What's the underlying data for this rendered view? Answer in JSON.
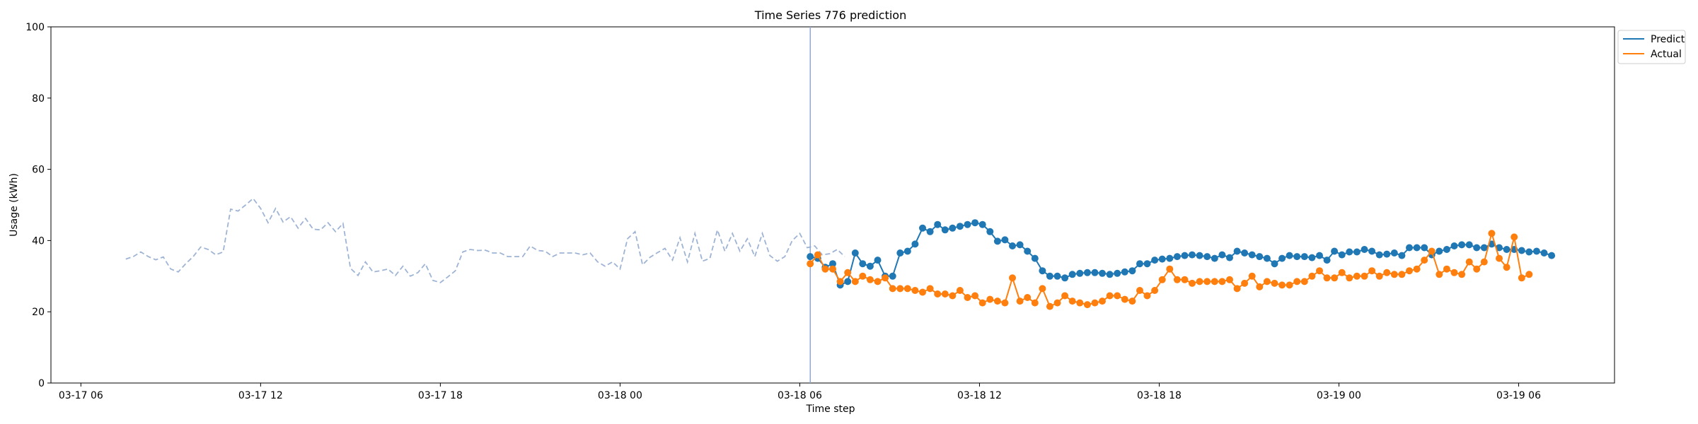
{
  "chart_data": {
    "type": "line",
    "title": "Time Series 776 prediction",
    "xlabel": "Time step",
    "ylabel": "Usage (kWh)",
    "ylim": [
      0,
      100
    ],
    "yticks": [
      0,
      20,
      40,
      60,
      80,
      100
    ],
    "xlim_hours": [
      5.0,
      57.2
    ],
    "xticks": [
      {
        "label": "03-17 06",
        "hour": 6
      },
      {
        "label": "03-17 12",
        "hour": 12
      },
      {
        "label": "03-17 18",
        "hour": 18
      },
      {
        "label": "03-18 00",
        "hour": 24
      },
      {
        "label": "03-18 06",
        "hour": 30
      },
      {
        "label": "03-18 12",
        "hour": 36
      },
      {
        "label": "03-18 18",
        "hour": 42
      },
      {
        "label": "03-19 00",
        "hour": 48
      },
      {
        "label": "03-19 06",
        "hour": 54
      }
    ],
    "split_hour": 30.35,
    "legend": {
      "position": "top-right outside",
      "entries": [
        "Predict",
        "Actual"
      ]
    },
    "colors": {
      "history": "#9fb4d4",
      "predict": "#1f77b4",
      "actual": "#ff7f0e",
      "split_line": "#8fa8d0"
    },
    "history": {
      "start_hour": 7.5,
      "step_hours": 0.25,
      "values": [
        34.8,
        35.5,
        36.8,
        35.5,
        34.6,
        35.4,
        32.0,
        31.2,
        33.5,
        35.5,
        38.2,
        37.5,
        36.0,
        36.8,
        48.8,
        48.3,
        50.0,
        51.8,
        49.0,
        45.0,
        49.0,
        45.2,
        46.7,
        43.5,
        46.2,
        43.2,
        43.0,
        45.0,
        42.5,
        44.8,
        32.2,
        30.2,
        34.0,
        31.2,
        31.5,
        32.0,
        30.2,
        32.8,
        30.0,
        31.0,
        33.5,
        28.8,
        28.2,
        29.8,
        31.5,
        36.8,
        37.5,
        37.2,
        37.3,
        36.5,
        36.5,
        35.5,
        35.5,
        35.5,
        38.5,
        37.2,
        37.0,
        35.5,
        36.5,
        36.5,
        36.5,
        36.0,
        36.5,
        34.0,
        32.8,
        34.0,
        32.0,
        40.5,
        42.5,
        33.2,
        35.3,
        36.6,
        37.8,
        34.5,
        40.8,
        34.0,
        42.0,
        34.2,
        35.0,
        43.0,
        37.0,
        42.0,
        37.0,
        40.5,
        35.5,
        42.0,
        35.8,
        34.2,
        35.5,
        40.0,
        42.0,
        38.0,
        38.5,
        36.0,
        36.3,
        37.5,
        35.5
      ]
    },
    "series": [
      {
        "name": "Predict",
        "start_hour": 30.35,
        "step_hours": 0.25,
        "values": [
          35.5,
          35.0,
          32.5,
          33.5,
          27.5,
          28.5,
          36.5,
          33.5,
          32.8,
          34.5,
          30.0,
          30.0,
          36.5,
          37.0,
          39.0,
          43.5,
          42.5,
          44.5,
          43.0,
          43.5,
          44.0,
          44.5,
          45.0,
          44.5,
          42.5,
          39.8,
          40.2,
          38.5,
          38.8,
          37.0,
          35.0,
          31.5,
          30.0,
          30.0,
          29.5,
          30.5,
          30.8,
          31.0,
          31.0,
          30.8,
          30.5,
          30.8,
          31.2,
          31.5,
          33.5,
          33.5,
          34.5,
          34.8,
          35.0,
          35.5,
          35.8,
          36.0,
          35.8,
          35.5,
          35.0,
          36.0,
          35.2,
          37.0,
          36.5,
          36.0,
          35.5,
          35.0,
          33.5,
          35.0,
          35.8,
          35.5,
          35.5,
          35.2,
          35.8,
          34.5,
          37.0,
          36.0,
          36.8,
          36.8,
          37.5,
          37.0,
          36.0,
          36.2,
          36.5,
          35.8,
          38.0,
          38.0,
          38.0,
          36.0,
          37.0,
          37.5,
          38.5,
          38.8,
          38.8,
          38.0,
          38.0,
          39.0,
          38.0,
          37.5,
          37.5,
          37.2,
          36.8,
          37.0,
          36.5,
          35.8
        ]
      },
      {
        "name": "Actual",
        "start_hour": 30.35,
        "step_hours": 0.25,
        "values": [
          33.5,
          36.0,
          32.0,
          32.0,
          28.5,
          31.0,
          28.5,
          30.0,
          29.0,
          28.5,
          29.5,
          26.5,
          26.5,
          26.5,
          26.0,
          25.5,
          26.5,
          25.0,
          25.0,
          24.5,
          26.0,
          24.0,
          24.5,
          22.5,
          23.5,
          23.0,
          22.5,
          29.5,
          23.0,
          24.0,
          22.5,
          26.5,
          21.5,
          22.5,
          24.5,
          23.0,
          22.5,
          22.0,
          22.5,
          23.0,
          24.5,
          24.5,
          23.5,
          23.0,
          26.0,
          24.5,
          26.0,
          29.0,
          32.0,
          29.0,
          29.0,
          28.0,
          28.5,
          28.5,
          28.5,
          28.5,
          29.0,
          26.5,
          28.0,
          30.0,
          27.0,
          28.5,
          28.0,
          27.5,
          27.5,
          28.5,
          28.5,
          30.0,
          31.5,
          29.5,
          29.5,
          31.0,
          29.5,
          30.0,
          30.0,
          31.5,
          30.0,
          31.0,
          30.5,
          30.5,
          31.5,
          32.0,
          34.5,
          37.0,
          30.5,
          32.0,
          31.0,
          30.5,
          34.0,
          32.0,
          34.0,
          42.0,
          35.0,
          32.5,
          41.0,
          29.5,
          30.5
        ]
      }
    ]
  }
}
